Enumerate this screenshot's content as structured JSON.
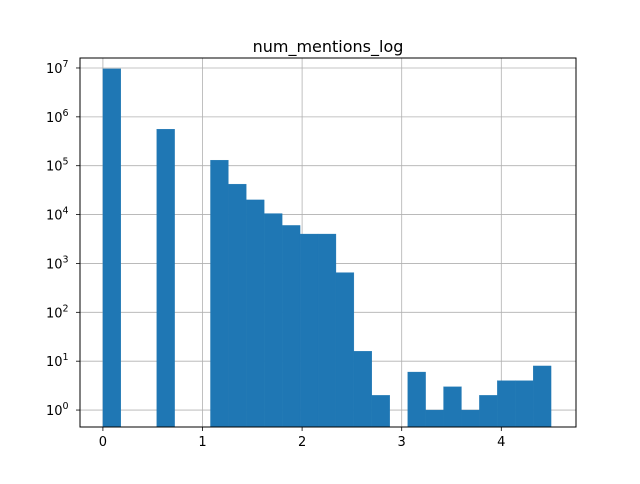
{
  "chart_data": {
    "type": "bar",
    "title": "num_mentions_log",
    "xlabel": "",
    "ylabel": "",
    "yscale": "log",
    "grid": true,
    "bar_color": "#1f77b4",
    "xlim": [
      -0.23,
      4.75
    ],
    "ylim": [
      0.45,
      16000000
    ],
    "xticks": [
      0,
      1,
      2,
      3,
      4
    ],
    "xtick_labels": [
      "0",
      "1",
      "2",
      "3",
      "4"
    ],
    "yticks": [
      1,
      10,
      100,
      1000,
      10000,
      100000,
      1000000,
      10000000
    ],
    "ytick_labels": [
      {
        "base": "10",
        "exp": "0"
      },
      {
        "base": "10",
        "exp": "1"
      },
      {
        "base": "10",
        "exp": "2"
      },
      {
        "base": "10",
        "exp": "3"
      },
      {
        "base": "10",
        "exp": "4"
      },
      {
        "base": "10",
        "exp": "5"
      },
      {
        "base": "10",
        "exp": "6"
      },
      {
        "base": "10",
        "exp": "7"
      }
    ],
    "bins": [
      {
        "x0": 0.0,
        "x1": 0.18,
        "value": 9600000
      },
      {
        "x0": 0.18,
        "x1": 0.36,
        "value": 0
      },
      {
        "x0": 0.36,
        "x1": 0.54,
        "value": 0
      },
      {
        "x0": 0.54,
        "x1": 0.72,
        "value": 560000
      },
      {
        "x0": 0.72,
        "x1": 0.9,
        "value": 0
      },
      {
        "x0": 0.9,
        "x1": 1.08,
        "value": 0
      },
      {
        "x0": 1.08,
        "x1": 1.26,
        "value": 130000
      },
      {
        "x0": 1.26,
        "x1": 1.44,
        "value": 42000
      },
      {
        "x0": 1.44,
        "x1": 1.62,
        "value": 20000
      },
      {
        "x0": 1.62,
        "x1": 1.8,
        "value": 10500
      },
      {
        "x0": 1.8,
        "x1": 1.98,
        "value": 6000
      },
      {
        "x0": 1.98,
        "x1": 2.16,
        "value": 4000
      },
      {
        "x0": 2.16,
        "x1": 2.34,
        "value": 4000
      },
      {
        "x0": 2.34,
        "x1": 2.52,
        "value": 650
      },
      {
        "x0": 2.52,
        "x1": 2.7,
        "value": 16
      },
      {
        "x0": 2.7,
        "x1": 2.88,
        "value": 2
      },
      {
        "x0": 2.88,
        "x1": 3.06,
        "value": 0
      },
      {
        "x0": 3.06,
        "x1": 3.24,
        "value": 6
      },
      {
        "x0": 3.24,
        "x1": 3.42,
        "value": 1
      },
      {
        "x0": 3.42,
        "x1": 3.6,
        "value": 3
      },
      {
        "x0": 3.6,
        "x1": 3.78,
        "value": 1
      },
      {
        "x0": 3.78,
        "x1": 3.96,
        "value": 2
      },
      {
        "x0": 3.96,
        "x1": 4.14,
        "value": 4
      },
      {
        "x0": 4.14,
        "x1": 4.32,
        "value": 4
      },
      {
        "x0": 4.32,
        "x1": 4.5,
        "value": 8
      }
    ]
  }
}
